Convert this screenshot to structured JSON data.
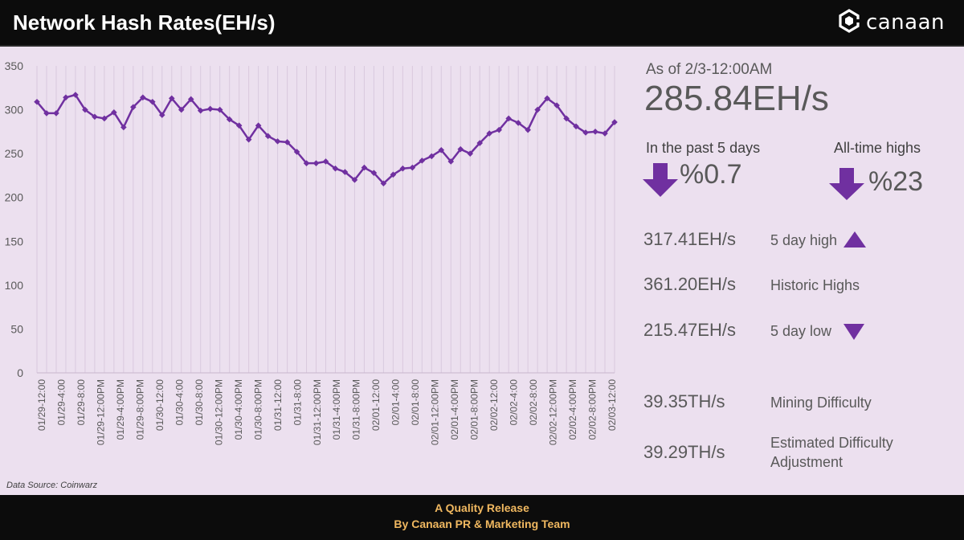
{
  "header": {
    "title": "Network Hash Rates(EH/s)",
    "brand": "canaan"
  },
  "stats": {
    "as_of": "As of 2/3-12:00AM",
    "current": "285.84EH/s",
    "past5_label": "In the past 5 days",
    "past5_value": "%0.7",
    "ath_label": "All-time highs",
    "ath_value": "%23",
    "high5_value": "317.41EH/s",
    "high5_label": "5 day high",
    "historic_value": "361.20EH/s",
    "historic_label": "Historic Highs",
    "low5_value": "215.47EH/s",
    "low5_label": "5 day low",
    "difficulty_value": "39.35TH/s",
    "difficulty_label": "Mining Difficulty",
    "est_value": "39.29TH/s",
    "est_label_1": "Estimated Difficulty",
    "est_label_2": "Adjustment"
  },
  "source": "Data Source: Coinwarz",
  "footer": {
    "line1": "A Quality Release",
    "line2": "By Canaan PR & Marketing Team"
  },
  "colors": {
    "line": "#7030a0",
    "accent": "#7030a0",
    "background": "#ece0ef",
    "header": "#0c0c0c",
    "footer_text": "#f0b860"
  },
  "icons": {
    "brand": "canaan-logo-icon",
    "down": "arrow-down-icon",
    "up": "triangle-up-icon"
  },
  "chart_data": {
    "type": "line",
    "ylim": [
      0,
      350
    ],
    "yticks": [
      0,
      50,
      100,
      150,
      200,
      250,
      300,
      350
    ],
    "grid": true,
    "x_tick_labels": [
      "01/29-12:00",
      "01/29-4:00",
      "01/29-8:00",
      "01/29-12:00PM",
      "01/29-4:00PM",
      "01/29-8:00PM",
      "01/30-12:00",
      "01/30-4:00",
      "01/30-8:00",
      "01/30-12:00PM",
      "01/30-4:00PM",
      "01/30-8:00PM",
      "01/31-12:00",
      "01/31-8:00",
      "01/31-12:00PM",
      "01/31-4:00PM",
      "01/31-8:00PM",
      "02/01-12:00",
      "02/01-4:00",
      "02/01-8:00",
      "02/01-12:00PM",
      "02/01-4:00PM",
      "02/01-8:00PM",
      "02/02-12:00",
      "02/02-4:00",
      "02/02-8:00",
      "02/02-12:00PM",
      "02/02-4:00PM",
      "02/02-8:00PM",
      "02/03-12:00"
    ],
    "series": [
      {
        "values": [
          309,
          296,
          296,
          314,
          317,
          300,
          292,
          290,
          297,
          280,
          303,
          314,
          309,
          294,
          313,
          300,
          312,
          299,
          301,
          300,
          289,
          282,
          266,
          282,
          270,
          264,
          263,
          252,
          239,
          239,
          241,
          233,
          229,
          220,
          234,
          228,
          216,
          226,
          233,
          234,
          242,
          247,
          254,
          241,
          255,
          250,
          262,
          273,
          277,
          290,
          285,
          277,
          300,
          313,
          305,
          290,
          281,
          274,
          275,
          273,
          285.84
        ]
      }
    ]
  }
}
